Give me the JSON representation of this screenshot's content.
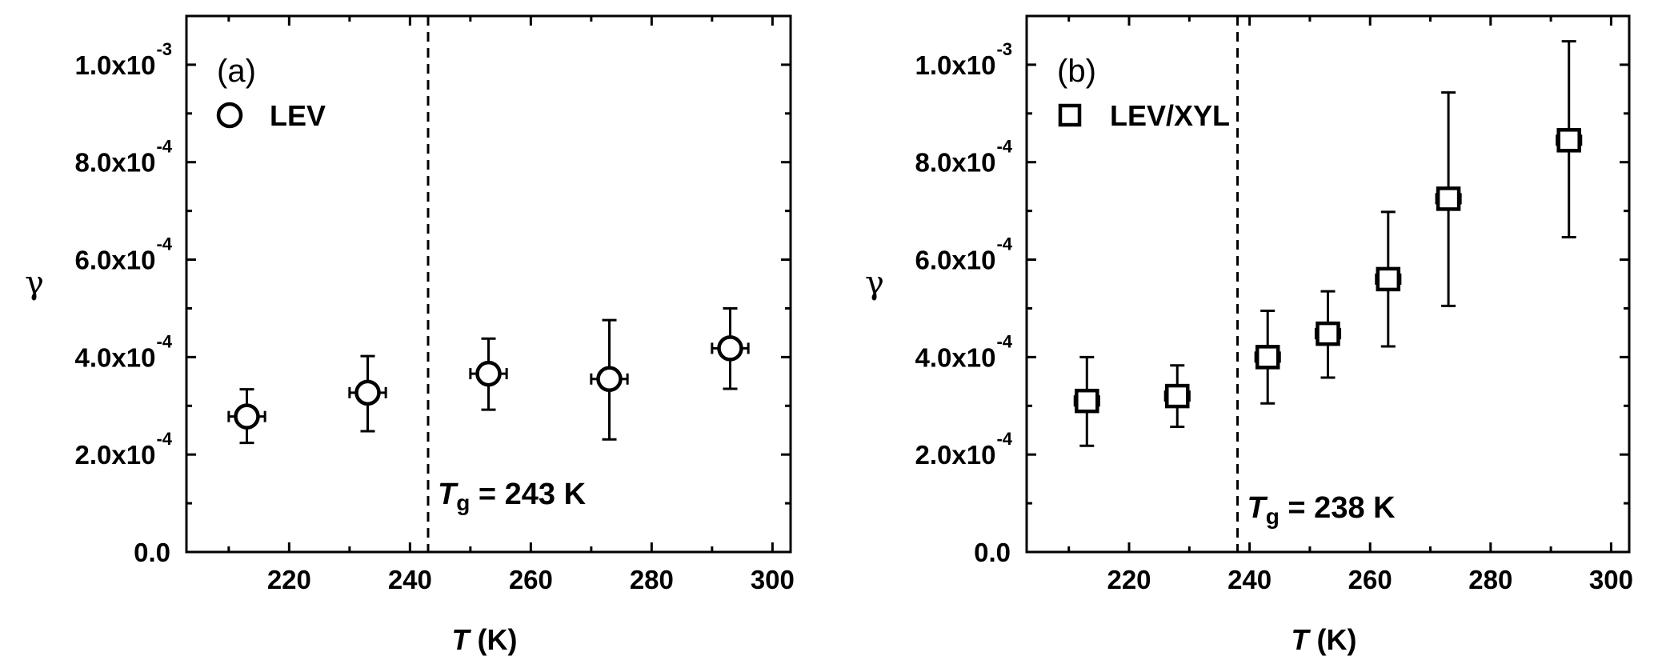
{
  "chart_data": [
    {
      "type": "scatter",
      "panel_label": "(a)",
      "xlabel_symbol": "T",
      "xlabel_unit": " (K)",
      "ylabel": "γ",
      "xlim": [
        203,
        303
      ],
      "ylim": [
        0,
        0.0011
      ],
      "x_ticks": [
        220,
        240,
        260,
        280,
        300
      ],
      "y_ticks": [
        {
          "mantissa": "0.0",
          "exp": ""
        },
        {
          "mantissa": "2.0x10",
          "exp": "-4"
        },
        {
          "mantissa": "4.0x10",
          "exp": "-4"
        },
        {
          "mantissa": "6.0x10",
          "exp": "-4"
        },
        {
          "mantissa": "8.0x10",
          "exp": "-4"
        },
        {
          "mantissa": "1.0x10",
          "exp": "-3"
        }
      ],
      "y_tick_values": [
        0,
        0.0002,
        0.0004,
        0.0006,
        0.0008,
        0.001
      ],
      "marker": "circle",
      "series": [
        {
          "name": "LEV",
          "points": [
            {
              "x": 213,
              "y": 0.000278,
              "yerr_low": 0.000224,
              "yerr_high": 0.000334,
              "xerr": 3
            },
            {
              "x": 233,
              "y": 0.000327,
              "yerr_low": 0.000248,
              "yerr_high": 0.000402,
              "xerr": 3
            },
            {
              "x": 253,
              "y": 0.000366,
              "yerr_low": 0.000292,
              "yerr_high": 0.000438,
              "xerr": 3
            },
            {
              "x": 273,
              "y": 0.000355,
              "yerr_low": 0.000231,
              "yerr_high": 0.000476,
              "xerr": 3
            },
            {
              "x": 293,
              "y": 0.000418,
              "yerr_low": 0.000335,
              "yerr_high": 0.0005,
              "xerr": 3
            }
          ]
        }
      ],
      "tg": {
        "value": 243,
        "label_symbol": "T",
        "label_sub": "g",
        "label_rest": " = 243 K"
      }
    },
    {
      "type": "scatter",
      "panel_label": "(b)",
      "xlabel_symbol": "T",
      "xlabel_unit": " (K)",
      "ylabel": "γ",
      "xlim": [
        203,
        303
      ],
      "ylim": [
        0,
        0.0011
      ],
      "x_ticks": [
        220,
        240,
        260,
        280,
        300
      ],
      "y_ticks": [
        {
          "mantissa": "0.0",
          "exp": ""
        },
        {
          "mantissa": "2.0x10",
          "exp": "-4"
        },
        {
          "mantissa": "4.0x10",
          "exp": "-4"
        },
        {
          "mantissa": "6.0x10",
          "exp": "-4"
        },
        {
          "mantissa": "8.0x10",
          "exp": "-4"
        },
        {
          "mantissa": "1.0x10",
          "exp": "-3"
        }
      ],
      "y_tick_values": [
        0,
        0.0002,
        0.0004,
        0.0006,
        0.0008,
        0.001
      ],
      "marker": "square",
      "series": [
        {
          "name": "LEV/XYL",
          "points": [
            {
              "x": 213,
              "y": 0.00031,
              "yerr_low": 0.000218,
              "yerr_high": 0.0004,
              "xerr": 2
            },
            {
              "x": 228,
              "y": 0.00032,
              "yerr_low": 0.000257,
              "yerr_high": 0.000383,
              "xerr": 2
            },
            {
              "x": 243,
              "y": 0.0004,
              "yerr_low": 0.000305,
              "yerr_high": 0.000495,
              "xerr": 2
            },
            {
              "x": 253,
              "y": 0.000448,
              "yerr_low": 0.000358,
              "yerr_high": 0.000535,
              "xerr": 2
            },
            {
              "x": 263,
              "y": 0.00056,
              "yerr_low": 0.000422,
              "yerr_high": 0.000698,
              "xerr": 2
            },
            {
              "x": 273,
              "y": 0.000725,
              "yerr_low": 0.000505,
              "yerr_high": 0.000943,
              "xerr": 2
            },
            {
              "x": 293,
              "y": 0.000845,
              "yerr_low": 0.000646,
              "yerr_high": 0.001048,
              "xerr": 2
            }
          ]
        }
      ],
      "tg": {
        "value": 238,
        "label_symbol": "T",
        "label_sub": "g",
        "label_rest": " = 238 K"
      }
    }
  ]
}
